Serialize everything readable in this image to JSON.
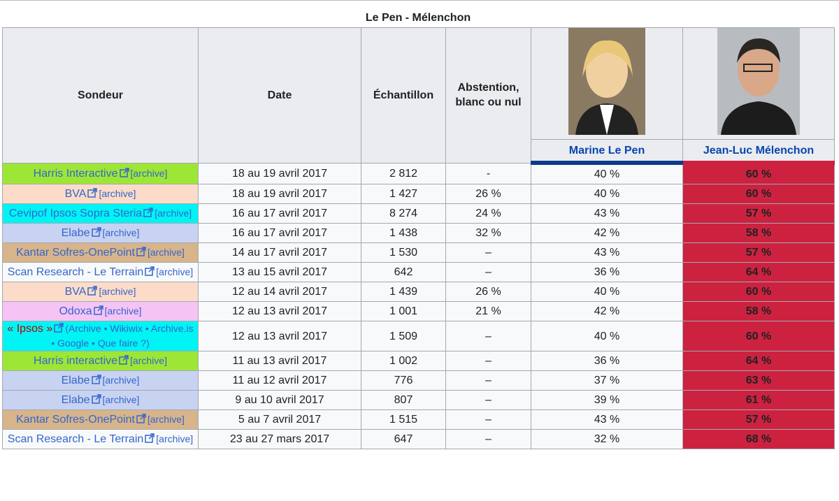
{
  "caption": "Le Pen - Mélenchon",
  "headers": {
    "sondeur": "Sondeur",
    "date": "Date",
    "echantillon": "Échantillon",
    "abstention": "Abstention, blanc ou nul"
  },
  "candidates": [
    {
      "name": "Marine Le Pen",
      "color": "#0d3a8e"
    },
    {
      "name": "Jean-Luc Mélenchon",
      "color": "#cc2240"
    }
  ],
  "rows": [
    {
      "sondeur": "Harris Interactive",
      "link": "[archive]",
      "color": "#9ee636",
      "date": "18 au 19 avril 2017",
      "echantillon": "2 812",
      "abstention": "-",
      "lepen": "40 %",
      "melenchon": "60 %"
    },
    {
      "sondeur": "BVA",
      "link": "[archive]",
      "color": "#fcdcc8",
      "date": "18 au 19 avril 2017",
      "echantillon": "1 427",
      "abstention": "26 %",
      "lepen": "40 %",
      "melenchon": "60 %"
    },
    {
      "sondeur": "Cevipof Ipsos Sopra Steria",
      "link": "[archive]",
      "color": "#00f4f4",
      "date": "16 au 17 avril 2017",
      "echantillon": "8 274",
      "abstention": "24 %",
      "lepen": "43 %",
      "melenchon": "57 %"
    },
    {
      "sondeur": "Elabe",
      "link": "[archive]",
      "color": "#c8d3f2",
      "date": "16 au 17 avril 2017",
      "echantillon": "1 438",
      "abstention": "32 %",
      "lepen": "42 %",
      "melenchon": "58 %"
    },
    {
      "sondeur": "Kantar Sofres-OnePoint",
      "link": "[archive]",
      "color": "#d8b48a",
      "date": "14 au 17 avril 2017",
      "echantillon": "1 530",
      "abstention": "–",
      "lepen": "43 %",
      "melenchon": "57 %"
    },
    {
      "sondeur": "Scan Research - Le Terrain",
      "link": "[archive]",
      "color": "#f8f9fa",
      "date": "13 au 15 avril 2017",
      "echantillon": "642",
      "abstention": "–",
      "lepen": "36 %",
      "melenchon": "64 %"
    },
    {
      "sondeur": "BVA",
      "link": "[archive]",
      "color": "#fcdcc8",
      "date": "12 au 14 avril 2017",
      "echantillon": "1 439",
      "abstention": "26 %",
      "lepen": "40 %",
      "melenchon": "60 %"
    },
    {
      "sondeur": "Odoxa",
      "link": "[archive]",
      "color": "#f5c4f5",
      "date": "12 au 13 avril 2017",
      "echantillon": "1 001",
      "abstention": "21 %",
      "lepen": "42 %",
      "melenchon": "58 %"
    },
    {
      "sondeur": "« Ipsos »",
      "link": "(Archive • Wikiwix • Archive.is • Google • Que faire ?)",
      "color": "#00f4f4",
      "date": "12 au 13 avril 2017",
      "echantillon": "1 509",
      "abstention": "–",
      "lepen": "40 %",
      "melenchon": "60 %"
    },
    {
      "sondeur": "Harris interactive",
      "link": "[archive]",
      "color": "#9ee636",
      "date": "11 au 13 avril 2017",
      "echantillon": "1 002",
      "abstention": "–",
      "lepen": "36 %",
      "melenchon": "64 %"
    },
    {
      "sondeur": "Elabe",
      "link": "[archive]",
      "color": "#c8d3f2",
      "date": "11 au 12 avril 2017",
      "echantillon": "776",
      "abstention": "–",
      "lepen": "37 %",
      "melenchon": "63 %"
    },
    {
      "sondeur": "Elabe",
      "link": "[archive]",
      "color": "#c8d3f2",
      "date": "9 au 10 avril 2017",
      "echantillon": "807",
      "abstention": "–",
      "lepen": "39 %",
      "melenchon": "61 %"
    },
    {
      "sondeur": "Kantar Sofres-OnePoint",
      "link": "[archive]",
      "color": "#d8b48a",
      "date": "5 au 7 avril 2017",
      "echantillon": "1 515",
      "abstention": "–",
      "lepen": "43 %",
      "melenchon": "57 %"
    },
    {
      "sondeur": "Scan Research - Le Terrain",
      "link": "[archive]",
      "color": "#f8f9fa",
      "date": "23 au 27 mars 2017",
      "echantillon": "647",
      "abstention": "–",
      "lepen": "32 %",
      "melenchon": "68 %"
    }
  ]
}
